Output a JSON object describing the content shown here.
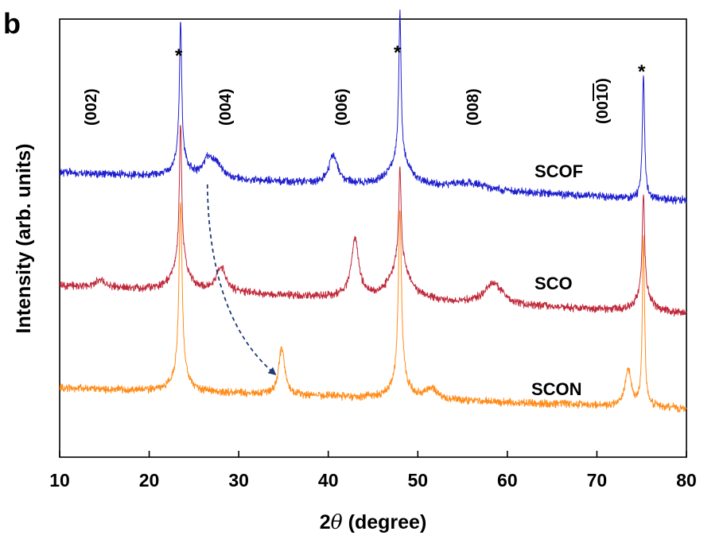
{
  "chart_data": {
    "type": "line",
    "panel_label": "b",
    "xlabel_prefix": "2",
    "xlabel_theta": "θ",
    "xlabel_suffix": " (degree)",
    "ylabel": "Intensity (arb. units)",
    "xlim": [
      10,
      80
    ],
    "ylim": [
      0,
      12
    ],
    "x_ticks": [
      10,
      20,
      30,
      40,
      50,
      60,
      70,
      80
    ],
    "y_ticks_shown": false,
    "series": [
      {
        "name": "SCOF",
        "label": "SCOF",
        "color": "#1f1fcf",
        "baseline": 7.8,
        "slope": -0.011,
        "noise": 0.16,
        "peaks": [
          {
            "x": 23.5,
            "h": 3.8,
            "w": 0.15
          },
          {
            "x": 23.5,
            "h": 0.5,
            "w": 0.9
          },
          {
            "x": 26.5,
            "h": 0.45,
            "w": 0.6
          },
          {
            "x": 27.5,
            "h": 0.4,
            "w": 0.7
          },
          {
            "x": 40.6,
            "h": 0.8,
            "w": 0.6
          },
          {
            "x": 48.0,
            "h": 4.0,
            "w": 0.15
          },
          {
            "x": 48.0,
            "h": 0.8,
            "w": 1.3
          },
          {
            "x": 55.5,
            "h": 0.2,
            "w": 2.5
          },
          {
            "x": 75.2,
            "h": 3.4,
            "w": 0.15
          }
        ]
      },
      {
        "name": "SCO",
        "label": "SCO",
        "color": "#c0283a",
        "baseline": 4.7,
        "slope": -0.011,
        "noise": 0.16,
        "peaks": [
          {
            "x": 14.5,
            "h": 0.2,
            "w": 0.6
          },
          {
            "x": 23.5,
            "h": 3.7,
            "w": 0.15
          },
          {
            "x": 23.5,
            "h": 0.9,
            "w": 0.9
          },
          {
            "x": 28.0,
            "h": 0.7,
            "w": 0.6
          },
          {
            "x": 43.0,
            "h": 1.6,
            "w": 0.5
          },
          {
            "x": 48.0,
            "h": 2.6,
            "w": 0.15
          },
          {
            "x": 48.0,
            "h": 1.1,
            "w": 1.2
          },
          {
            "x": 58.5,
            "h": 0.6,
            "w": 1.2
          },
          {
            "x": 75.2,
            "h": 2.6,
            "w": 0.15
          },
          {
            "x": 75.2,
            "h": 0.6,
            "w": 0.8
          }
        ]
      },
      {
        "name": "SCON",
        "label": "SCON",
        "color": "#ff8c1a",
        "baseline": 1.9,
        "slope": -0.008,
        "noise": 0.16,
        "peaks": [
          {
            "x": 23.5,
            "h": 4.6,
            "w": 0.2
          },
          {
            "x": 23.5,
            "h": 0.6,
            "w": 0.8
          },
          {
            "x": 34.8,
            "h": 1.3,
            "w": 0.4
          },
          {
            "x": 48.0,
            "h": 4.6,
            "w": 0.2
          },
          {
            "x": 48.0,
            "h": 0.6,
            "w": 0.9
          },
          {
            "x": 51.5,
            "h": 0.3,
            "w": 0.7
          },
          {
            "x": 73.5,
            "h": 1.0,
            "w": 0.4
          },
          {
            "x": 75.2,
            "h": 4.6,
            "w": 0.15
          }
        ]
      }
    ],
    "annotations": {
      "hkl": [
        {
          "text": "(002)",
          "x": 13.2
        },
        {
          "text": "(004)",
          "x": 28.5
        },
        {
          "text": "(006)",
          "x": 42.5
        },
        {
          "text": "(008)",
          "x": 57.5
        }
      ],
      "hkl_00_10": {
        "prefix": "(00",
        "over": "1",
        "over2": "0",
        "suffix": ")",
        "x": 70.3
      },
      "stars": [
        {
          "text": "*",
          "x": 23.5
        },
        {
          "text": "*",
          "x": 48.0
        },
        {
          "text": "*",
          "x": 75.2
        }
      ],
      "shift_arrow": {
        "from_x": 26.5,
        "to_x": 34.0
      }
    }
  }
}
